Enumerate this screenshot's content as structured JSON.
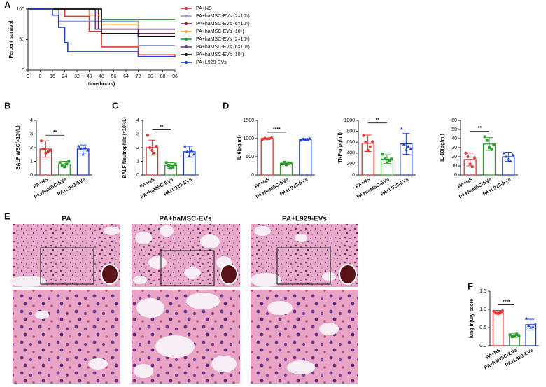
{
  "chart_data": [
    {
      "type": "line",
      "step": true,
      "panel_label": "A",
      "ylabel": "Percent survival",
      "xlabel": "time(hours)",
      "xlim": [
        0,
        96
      ],
      "xticks": [
        0,
        8,
        16,
        24,
        32,
        40,
        48,
        56,
        64,
        72,
        80,
        88,
        96
      ],
      "ylim": [
        0,
        100
      ],
      "yticks": [
        0,
        50,
        100
      ],
      "series": [
        {
          "name": "PA+NS",
          "color": "#e8312f",
          "x": [
            0,
            24,
            40,
            48,
            72,
            96
          ],
          "values": [
            100,
            88,
            63,
            38,
            25,
            21
          ]
        },
        {
          "name": "PA+haMSC-EVs (2×10⁵)",
          "color": "#8f9be0",
          "x": [
            0,
            20,
            72,
            96
          ],
          "values": [
            100,
            80,
            40,
            40
          ]
        },
        {
          "name": "PA+haMSC-EVs (6×10⁵)",
          "color": "#7a1f2b",
          "x": [
            0,
            46,
            72,
            96
          ],
          "values": [
            100,
            67,
            60,
            60
          ]
        },
        {
          "name": "PA+haMSC-EVs (10⁶)",
          "color": "#f4a63a",
          "x": [
            0,
            40,
            48,
            72,
            96
          ],
          "values": [
            100,
            90,
            75,
            67,
            67
          ]
        },
        {
          "name": "PA+haMSC-EVs (2×10⁶)",
          "color": "#2ca02c",
          "x": [
            0,
            48,
            96
          ],
          "values": [
            100,
            83,
            83
          ]
        },
        {
          "name": "PA+haMSC-EVs (6×10⁶)",
          "color": "#6a3d9a",
          "x": [
            0,
            44,
            96
          ],
          "values": [
            100,
            67,
            67
          ]
        },
        {
          "name": "PA+haMSC-EVs (10⁷)",
          "color": "#111111",
          "x": [
            0,
            48,
            72,
            96
          ],
          "values": [
            100,
            60,
            55,
            55
          ]
        },
        {
          "name": "PA+L929-EVs",
          "color": "#1f3fd6",
          "x": [
            0,
            16,
            20,
            24,
            26,
            72,
            96
          ],
          "values": [
            100,
            90,
            70,
            45,
            30,
            22,
            22
          ]
        }
      ]
    },
    {
      "type": "bar",
      "panel_label": "B",
      "ylabel": "BALF WBC(×10⁶/L)",
      "categories": [
        "PA+NS",
        "PA+haMSC-EVs",
        "PA+L929-EVs"
      ],
      "colors": [
        "#e8312f",
        "#2ca02c",
        "#1f3fd6"
      ],
      "values": [
        1.9,
        0.8,
        1.9
      ],
      "errors": [
        0.6,
        0.2,
        0.3
      ],
      "points": [
        [
          2.5,
          1.9,
          1.6,
          1.7,
          1.8
        ],
        [
          0.9,
          0.7,
          0.6,
          0.8,
          1.0
        ],
        [
          2.1,
          1.9,
          1.5,
          2.0,
          1.8
        ]
      ],
      "ylim": [
        0,
        4
      ],
      "yticks": [
        0,
        1,
        2,
        3,
        4
      ],
      "significance": "**"
    },
    {
      "type": "bar",
      "panel_label": "C",
      "ylabel": "BALF Neutrophils (×10⁶/L)",
      "categories": [
        "PA+NS",
        "PA+haMSC-EVs",
        "PA+L929-EVs"
      ],
      "colors": [
        "#e8312f",
        "#2ca02c",
        "#1f3fd6"
      ],
      "values": [
        2.0,
        0.7,
        1.7
      ],
      "errors": [
        0.55,
        0.2,
        0.4
      ],
      "points": [
        [
          2.9,
          2.0,
          1.8,
          1.6,
          2.1
        ],
        [
          0.9,
          0.7,
          0.5,
          0.6,
          0.8
        ],
        [
          2.1,
          1.7,
          1.4,
          1.8,
          1.5
        ]
      ],
      "ylim": [
        0,
        4
      ],
      "yticks": [
        0,
        1,
        2,
        3,
        4
      ],
      "significance": "**"
    },
    {
      "type": "bar",
      "panel_label": "D",
      "ylabel": "IL-6(pg/ml)",
      "categories": [
        "PA+NS",
        "PA+haMSC-EVs",
        "PA+L929-EVs"
      ],
      "colors": [
        "#e8312f",
        "#2ca02c",
        "#1f3fd6"
      ],
      "values": [
        1000,
        320,
        970
      ],
      "errors": [
        20,
        40,
        30
      ],
      "points": [
        [
          980,
          1010,
          990,
          1000,
          1020
        ],
        [
          300,
          350,
          280,
          330,
          320
        ],
        [
          950,
          990,
          960,
          980,
          1000
        ]
      ],
      "ylim": [
        0,
        1500
      ],
      "yticks": [
        0,
        500,
        1000,
        1500
      ],
      "significance": "****"
    },
    {
      "type": "bar",
      "ylabel": "TNF-α(pg/ml)",
      "categories": [
        "PA+NS",
        "PA+haMSC-EVs",
        "PA+L929-EVs"
      ],
      "colors": [
        "#e8312f",
        "#2ca02c",
        "#1f3fd6"
      ],
      "values": [
        580,
        290,
        570
      ],
      "errors": [
        150,
        80,
        190
      ],
      "points": [
        [
          720,
          600,
          450,
          520,
          610
        ],
        [
          380,
          300,
          220,
          260,
          290
        ],
        [
          850,
          560,
          460,
          520,
          480
        ]
      ],
      "ylim": [
        0,
        1000
      ],
      "yticks": [
        0,
        200,
        400,
        600,
        800,
        1000
      ],
      "significance": "**"
    },
    {
      "type": "bar",
      "ylabel": "IL-10(pg/ml)",
      "categories": [
        "PA+NS",
        "PA+haMSC-EVs",
        "PA+L929-EVs"
      ],
      "colors": [
        "#e8312f",
        "#2ca02c",
        "#1f3fd6"
      ],
      "values": [
        17,
        34,
        20
      ],
      "errors": [
        7,
        7,
        5
      ],
      "points": [
        [
          24,
          20,
          12,
          9,
          19
        ],
        [
          42,
          38,
          30,
          28,
          33
        ],
        [
          24,
          20,
          17,
          15,
          22
        ]
      ],
      "ylim": [
        0,
        60
      ],
      "yticks": [
        0,
        10,
        20,
        30,
        40,
        50,
        60
      ],
      "significance": "**"
    },
    {
      "type": "bar",
      "panel_label": "F",
      "ylabel": "lung injury score",
      "categories": [
        "PA+NS",
        "PA+haMSC-EVs",
        "PA+L929-EVs"
      ],
      "colors": [
        "#e8312f",
        "#2ca02c",
        "#1f3fd6"
      ],
      "values": [
        0.92,
        0.28,
        0.58
      ],
      "errors": [
        0.05,
        0.05,
        0.15
      ],
      "points": [
        [
          0.95,
          0.9,
          0.88,
          0.92,
          0.96
        ],
        [
          0.3,
          0.25,
          0.27,
          0.32,
          0.28
        ],
        [
          0.75,
          0.55,
          0.5,
          0.52,
          0.6
        ]
      ],
      "ylim": [
        0,
        1.5
      ],
      "yticks": [
        {
          "value": 0,
          "label": "0.0"
        },
        {
          "value": 0.5,
          "label": "0.5"
        },
        {
          "value": 1,
          "label": "1.0"
        },
        {
          "value": 1.5,
          "label": "1.5"
        }
      ],
      "significance": "****"
    }
  ],
  "histology": {
    "panel_label": "E",
    "titles": [
      "PA",
      "PA+haMSC-EVs",
      "PA+L929-EVs"
    ]
  }
}
